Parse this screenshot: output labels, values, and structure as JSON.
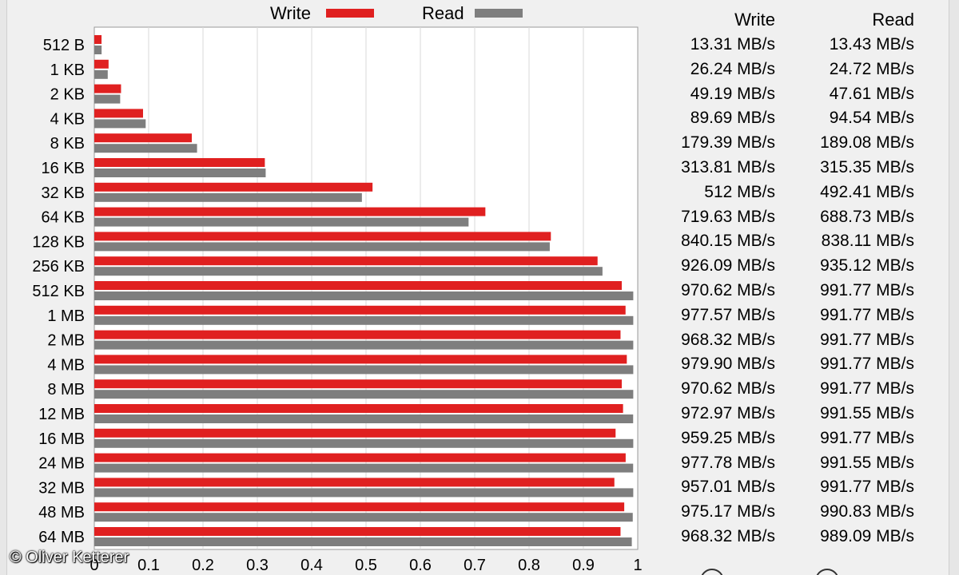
{
  "legend": {
    "write_label": "Write",
    "read_label": "Read",
    "write_color": "#e02020",
    "read_color": "#7e7e7e"
  },
  "table": {
    "write_header": "Write",
    "read_header": "Read"
  },
  "watermark": "© Oliver Ketterer",
  "chart_data": {
    "type": "bar",
    "orientation": "horizontal",
    "categories": [
      "512 B",
      "1 KB",
      "2 KB",
      "4 KB",
      "8 KB",
      "16 KB",
      "32 KB",
      "64 KB",
      "128 KB",
      "256 KB",
      "512 KB",
      "1 MB",
      "2 MB",
      "4 MB",
      "8 MB",
      "12 MB",
      "16 MB",
      "24 MB",
      "32 MB",
      "48 MB",
      "64 MB"
    ],
    "series": [
      {
        "name": "Write",
        "color": "#e02020",
        "values": [
          0.01331,
          0.02624,
          0.04919,
          0.08969,
          0.17939,
          0.31381,
          0.512,
          0.71963,
          0.84015,
          0.92609,
          0.97062,
          0.97757,
          0.96832,
          0.9799,
          0.97062,
          0.97297,
          0.95925,
          0.97778,
          0.95701,
          0.97517,
          0.96832
        ],
        "labels": [
          "13.31 MB/s",
          "26.24 MB/s",
          "49.19 MB/s",
          "89.69 MB/s",
          "179.39 MB/s",
          "313.81 MB/s",
          "512 MB/s",
          "719.63 MB/s",
          "840.15 MB/s",
          "926.09 MB/s",
          "970.62 MB/s",
          "977.57 MB/s",
          "968.32 MB/s",
          "979.90 MB/s",
          "970.62 MB/s",
          "972.97 MB/s",
          "959.25 MB/s",
          "977.78 MB/s",
          "957.01 MB/s",
          "975.17 MB/s",
          "968.32 MB/s"
        ]
      },
      {
        "name": "Read",
        "color": "#7e7e7e",
        "values": [
          0.01343,
          0.02472,
          0.04761,
          0.09454,
          0.18908,
          0.31535,
          0.49241,
          0.68873,
          0.83811,
          0.93512,
          0.99177,
          0.99177,
          0.99177,
          0.99177,
          0.99177,
          0.99155,
          0.99177,
          0.99155,
          0.99177,
          0.99083,
          0.98909
        ],
        "labels": [
          "13.43 MB/s",
          "24.72 MB/s",
          "47.61 MB/s",
          "94.54 MB/s",
          "189.08 MB/s",
          "315.35 MB/s",
          "492.41 MB/s",
          "688.73 MB/s",
          "838.11 MB/s",
          "935.12 MB/s",
          "991.77 MB/s",
          "991.77 MB/s",
          "991.77 MB/s",
          "991.77 MB/s",
          "991.77 MB/s",
          "991.55 MB/s",
          "991.77 MB/s",
          "991.55 MB/s",
          "991.77 MB/s",
          "990.83 MB/s",
          "989.09 MB/s"
        ]
      }
    ],
    "xlim": [
      0,
      1
    ],
    "x_ticks": [
      "0",
      "0.1",
      "0.2",
      "0.3",
      "0.4",
      "0.5",
      "0.6",
      "0.7",
      "0.8",
      "0.9",
      "1"
    ],
    "grid": true,
    "legend_position": "top-center"
  }
}
